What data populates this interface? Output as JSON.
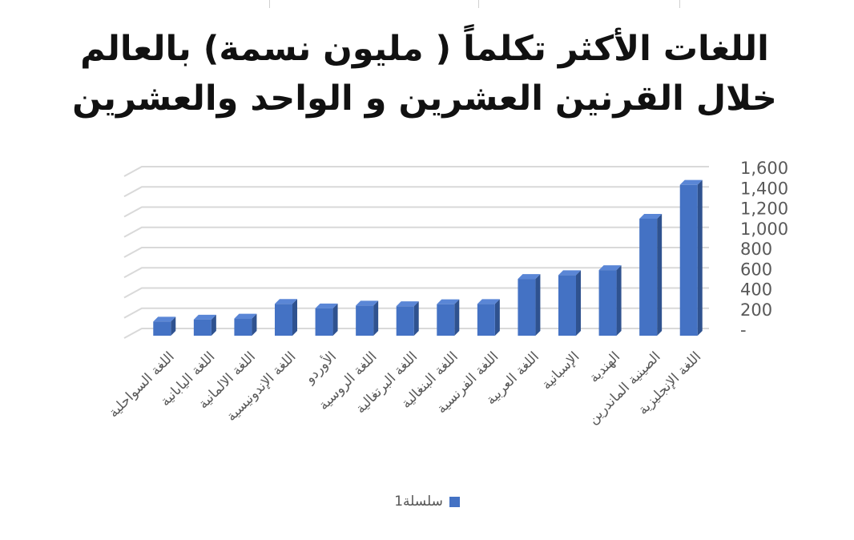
{
  "chart_data": {
    "type": "bar",
    "title": "اللغات الأكثر تكلماً ( مليون نسمة) بالعالم خلال القرنين العشرين و الواحد والعشرين",
    "categories": [
      "اللغة السواحلية",
      "اللغة اليابانية",
      "اللغة الالمانية",
      "اللغة الإندونيسية",
      "الأوردو",
      "اللغة الروسية",
      "اللغة البرتغالية",
      "اللغة البنغالية",
      "اللغة الفرنسية",
      "اللغة العربية",
      "الإسبانية",
      "الهندية",
      "الصينية الماندرين",
      "اللغة الإنجليزية"
    ],
    "series": [
      {
        "name": "سلسلة1",
        "color": "#4472c4",
        "values": [
          100,
          120,
          130,
          275,
          231,
          258,
          252,
          272,
          274,
          522,
          559,
          609,
          1117,
          1452
        ]
      }
    ],
    "ylim": [
      0,
      1600
    ],
    "y_ticks": [
      "-",
      "200",
      "400",
      "600",
      "800",
      "1,000",
      "1,200",
      "1,400",
      "1,600"
    ],
    "y_axis_side": "right",
    "grid": true,
    "legend_position": "bottom",
    "style": "3d-column",
    "xlabel": "",
    "ylabel": ""
  }
}
